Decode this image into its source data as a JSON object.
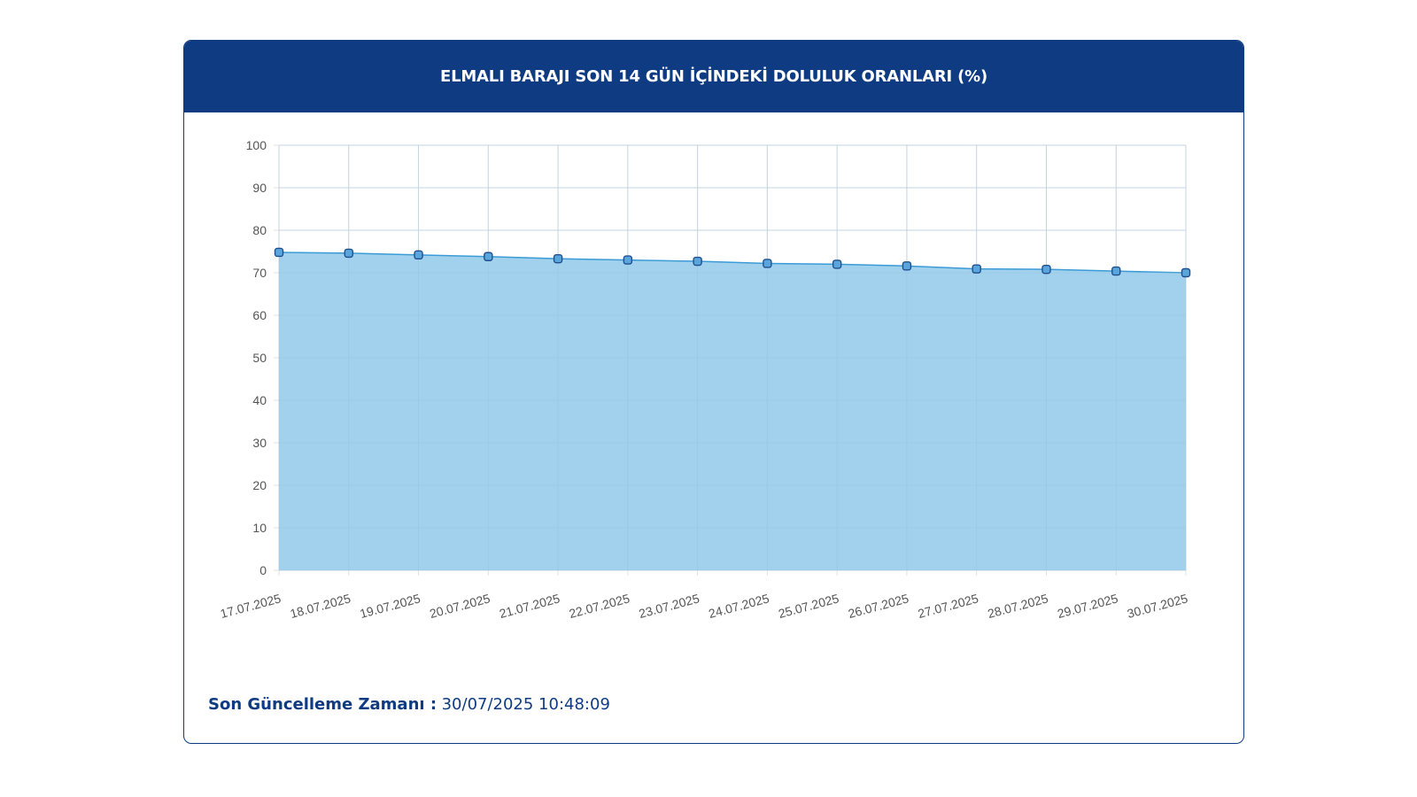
{
  "card": {
    "title": "ELMALI BARAJI SON 14 GÜN İÇİNDEKİ DOLULUK ORANLARI (%)",
    "update_label": "Son Güncelleme Zamanı :",
    "update_value": "30/07/2025 10:48:09"
  },
  "colors": {
    "header": "#0f3b82",
    "area_fill": "#9dcfec",
    "line": "#3a9bd6",
    "point_fill": "#5aa6dc",
    "point_stroke": "#1f4f8f"
  },
  "chart_data": {
    "type": "area",
    "title": "ELMALI BARAJI SON 14 GÜN İÇİNDEKİ DOLULUK ORANLARI (%)",
    "xlabel": "",
    "ylabel": "",
    "ylim": [
      0,
      100
    ],
    "yticks": [
      0,
      10,
      20,
      30,
      40,
      50,
      60,
      70,
      80,
      90,
      100
    ],
    "grid": true,
    "legend": "none",
    "categories": [
      "17.07.2025",
      "18.07.2025",
      "19.07.2025",
      "20.07.2025",
      "21.07.2025",
      "22.07.2025",
      "23.07.2025",
      "24.07.2025",
      "25.07.2025",
      "26.07.2025",
      "27.07.2025",
      "28.07.2025",
      "29.07.2025",
      "30.07.2025"
    ],
    "series": [
      {
        "values": [
          74.8,
          74.6,
          74.2,
          73.8,
          73.3,
          73.0,
          72.7,
          72.2,
          72.0,
          71.6,
          70.9,
          70.8,
          70.4,
          70.0
        ]
      }
    ]
  }
}
